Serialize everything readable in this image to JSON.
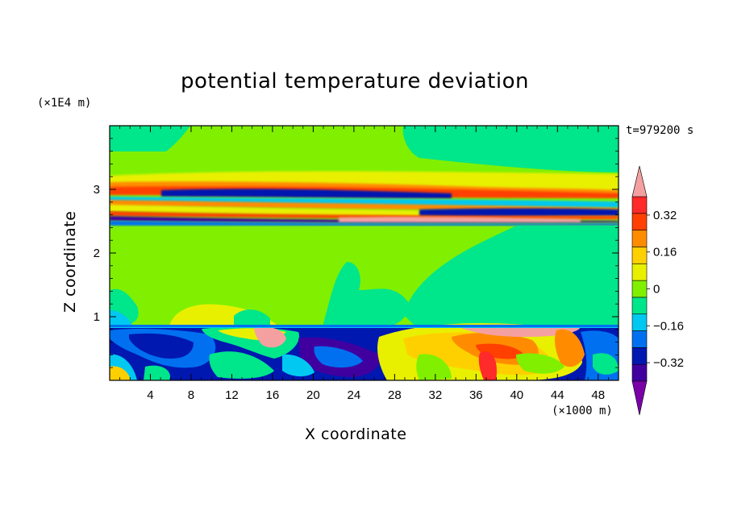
{
  "chart_data": {
    "type": "heatmap",
    "title": "potential temperature deviation",
    "xlabel": "X coordinate",
    "ylabel": "Z coordinate",
    "x_unit": "(×1000 m)",
    "y_unit": "(×1E4 m)",
    "time_label": "t=979200 s",
    "xlim": [
      0,
      50
    ],
    "ylim": [
      0,
      4
    ],
    "x_ticks": [
      4,
      8,
      12,
      16,
      20,
      24,
      28,
      32,
      36,
      40,
      44,
      48
    ],
    "y_ticks": [
      1,
      2,
      3
    ],
    "colorbar": {
      "levels": [
        -0.48,
        -0.4,
        -0.32,
        -0.24,
        -0.16,
        -0.08,
        0,
        0.08,
        0.16,
        0.24,
        0.32,
        0.4,
        0.48
      ],
      "labels": [
        "0.32",
        "0.16",
        "0",
        "−0.16",
        "−0.32"
      ],
      "label_values": [
        0.32,
        0.16,
        0,
        -0.16,
        -0.32
      ],
      "colors": [
        "#7a00a8",
        "#4000a0",
        "#0018b0",
        "#0070f0",
        "#00c8f0",
        "#00e68a",
        "#80f000",
        "#e8f000",
        "#ffd000",
        "#ff8c00",
        "#ff4000",
        "#ff2a2a",
        "#f5a0a0"
      ],
      "extends": "both"
    },
    "colors": {
      "background_field": "#80f000",
      "near_zero_negative": "#00e68a"
    }
  }
}
